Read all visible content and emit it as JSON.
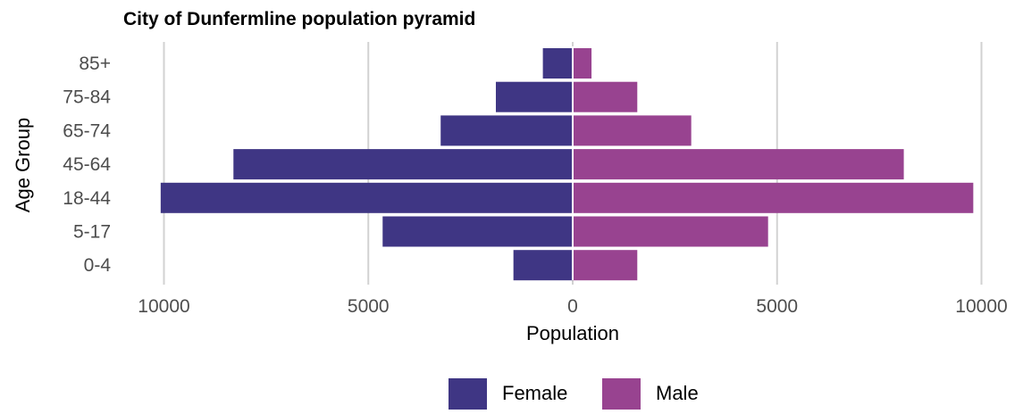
{
  "chart_data": {
    "type": "bar",
    "orientation": "horizontal",
    "title": "City of Dunfermline population pyramid",
    "xlabel": "Population",
    "ylabel": "Age Group",
    "categories": [
      "0-4",
      "5-17",
      "18-44",
      "45-64",
      "65-74",
      "75-84",
      "85+"
    ],
    "series": [
      {
        "name": "Female",
        "color": "#3f3684",
        "values": [
          1450,
          4650,
          10080,
          8300,
          3230,
          1880,
          730
        ]
      },
      {
        "name": "Male",
        "color": "#984390",
        "values": [
          1580,
          4780,
          9800,
          8100,
          2900,
          1580,
          460
        ]
      }
    ],
    "xlim": [
      -10500,
      10500
    ],
    "x_ticks": [
      -10000,
      -5000,
      0,
      5000,
      10000
    ],
    "x_tick_labels": [
      "10000",
      "5000",
      "0",
      "5000",
      "10000"
    ],
    "grid": true,
    "legend_position": "bottom"
  }
}
